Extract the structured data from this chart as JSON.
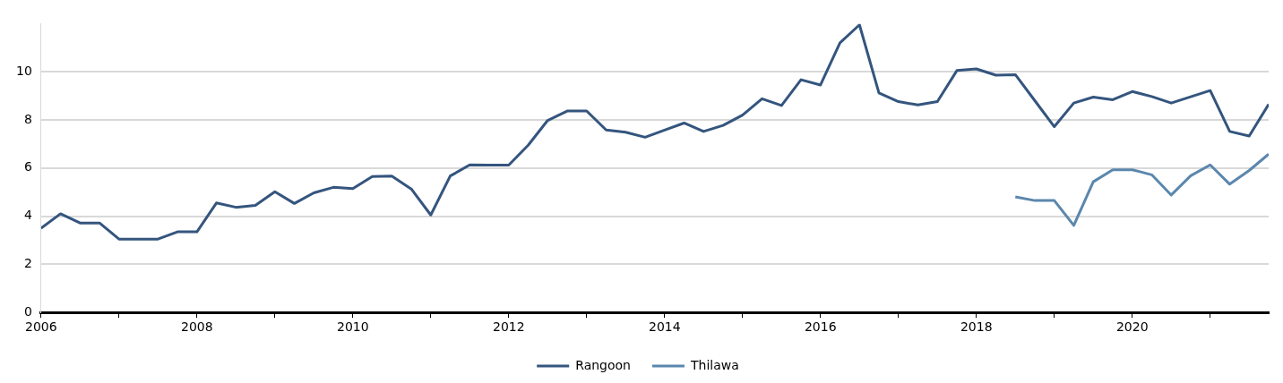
{
  "chart_data": {
    "type": "line",
    "xlim": [
      2006,
      2021.75
    ],
    "xticks": [
      2006,
      {
        "value": 2007,
        "label": null
      },
      2008,
      {
        "value": 2009,
        "label": null
      },
      2010,
      {
        "value": 2011,
        "label": null
      },
      2012,
      {
        "value": 2013,
        "label": null
      },
      2014,
      {
        "value": 2015,
        "label": null
      },
      2016,
      {
        "value": 2017,
        "label": null
      },
      2018,
      {
        "value": 2019,
        "label": null
      },
      2020,
      {
        "value": 2021,
        "label": null
      }
    ],
    "ylim": [
      0,
      12
    ],
    "yticks": [
      0,
      2,
      4,
      6,
      8,
      10
    ],
    "grid": "y",
    "legend": "bottom",
    "marker": "none",
    "line_style": "solid",
    "series": [
      {
        "name": "Rangoon",
        "color": "#34557e",
        "x": [
          2006,
          2006.25,
          2006.5,
          2006.75,
          2007,
          2007.25,
          2007.5,
          2007.75,
          2008,
          2008.25,
          2008.5,
          2008.75,
          2009,
          2009.25,
          2009.5,
          2009.75,
          2010,
          2010.25,
          2010.5,
          2010.75,
          2011,
          2011.25,
          2011.5,
          2011.75,
          2012,
          2012.25,
          2012.5,
          2012.75,
          2013,
          2013.25,
          2013.5,
          2013.75,
          2014,
          2014.25,
          2014.5,
          2014.75,
          2015,
          2015.25,
          2015.5,
          2015.75,
          2016,
          2016.25,
          2016.5,
          2016.75,
          2017,
          2017.25,
          2017.5,
          2017.75,
          2018,
          2018.25,
          2018.5,
          2018.75,
          2019,
          2019.25,
          2019.5,
          2019.75,
          2020,
          2020.25,
          2020.5,
          2020.75,
          2021,
          2021.25,
          2021.5,
          2021.75
        ],
        "values": [
          3.5,
          4.1,
          3.72,
          3.72,
          3.05,
          3.05,
          3.05,
          3.35,
          3.35,
          4.55,
          4.37,
          4.45,
          5.02,
          4.53,
          4.97,
          5.2,
          5.15,
          5.65,
          5.67,
          5.13,
          4.05,
          5.67,
          6.13,
          6.12,
          6.12,
          6.95,
          7.98,
          8.37,
          8.37,
          7.58,
          7.49,
          7.28,
          7.58,
          7.87,
          7.52,
          7.77,
          8.2,
          8.88,
          8.6,
          9.67,
          9.45,
          11.2,
          11.95,
          9.12,
          8.76,
          8.62,
          8.76,
          10.05,
          10.12,
          9.86,
          9.88,
          8.8,
          7.72,
          8.7,
          8.95,
          8.84,
          9.18,
          8.97,
          8.7,
          8.96,
          9.22,
          7.52,
          7.33,
          8.65
        ]
      },
      {
        "name": "Thilawa",
        "color": "#5b87ad",
        "x": [
          2018.5,
          2018.75,
          2019,
          2019.25,
          2019.5,
          2019.75,
          2020,
          2020.25,
          2020.5,
          2020.75,
          2021,
          2021.25,
          2021.5,
          2021.75
        ],
        "values": [
          4.8,
          4.65,
          4.65,
          3.62,
          5.43,
          5.93,
          5.93,
          5.72,
          4.88,
          5.68,
          6.13,
          5.33,
          5.9,
          6.58
        ]
      }
    ]
  }
}
